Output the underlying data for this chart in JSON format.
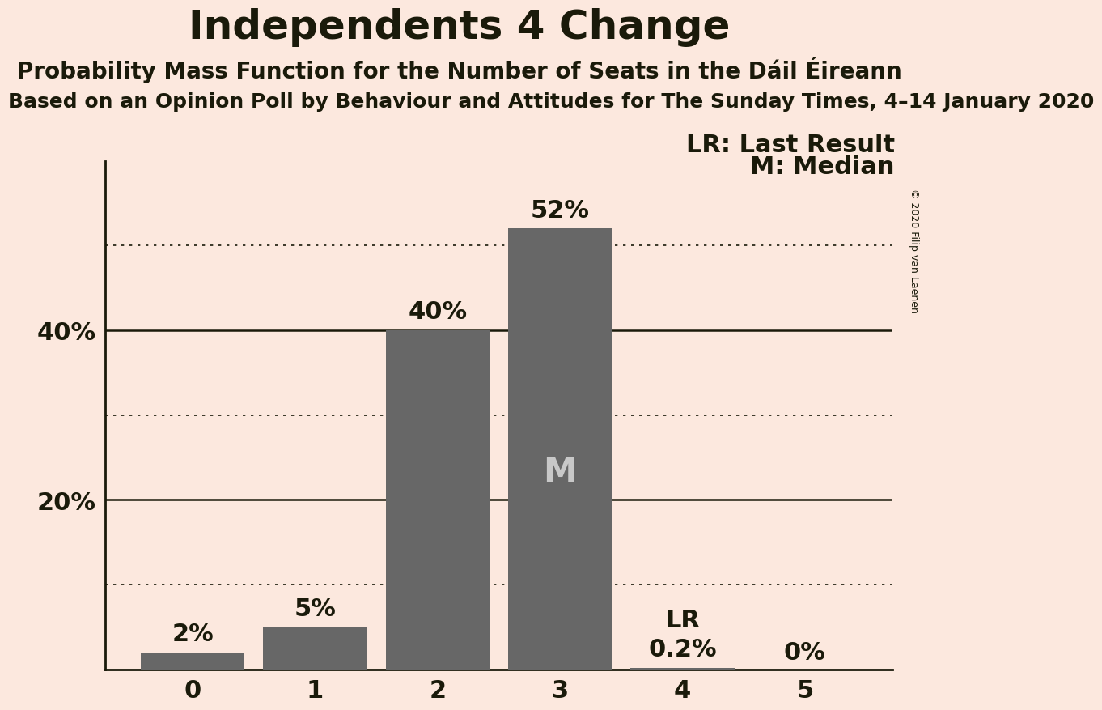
{
  "title": "Independents 4 Change",
  "subtitle1": "Probability Mass Function for the Number of Seats in the Dáil Éireann",
  "subtitle2": "Based on an Opinion Poll by Behaviour and Attitudes for The Sunday Times, 4–14 January 2020",
  "copyright": "© 2020 Filip van Laenen",
  "categories": [
    0,
    1,
    2,
    3,
    4,
    5
  ],
  "values": [
    0.02,
    0.05,
    0.4,
    0.52,
    0.002,
    0.0
  ],
  "bar_color": "#676767",
  "background_color": "#fce8de",
  "median": 3,
  "last_result": 4,
  "bar_labels": [
    "2%",
    "5%",
    "40%",
    "52%",
    "LR\n0.2%",
    "0%"
  ],
  "ytick_positions": [
    0.2,
    0.4
  ],
  "ytick_labels": [
    "20%",
    "40%"
  ],
  "solid_yticks": [
    0.2,
    0.4
  ],
  "dotted_yticks": [
    0.1,
    0.3,
    0.5
  ],
  "ylim": [
    0,
    0.6
  ],
  "legend_lr": "LR: Last Result",
  "legend_m": "M: Median",
  "title_fontsize": 36,
  "subtitle1_fontsize": 20,
  "subtitle2_fontsize": 18,
  "label_fontsize": 22,
  "axis_label_fontsize": 22,
  "median_label_color": "#c8c8c8",
  "text_color": "#1a1a0a"
}
